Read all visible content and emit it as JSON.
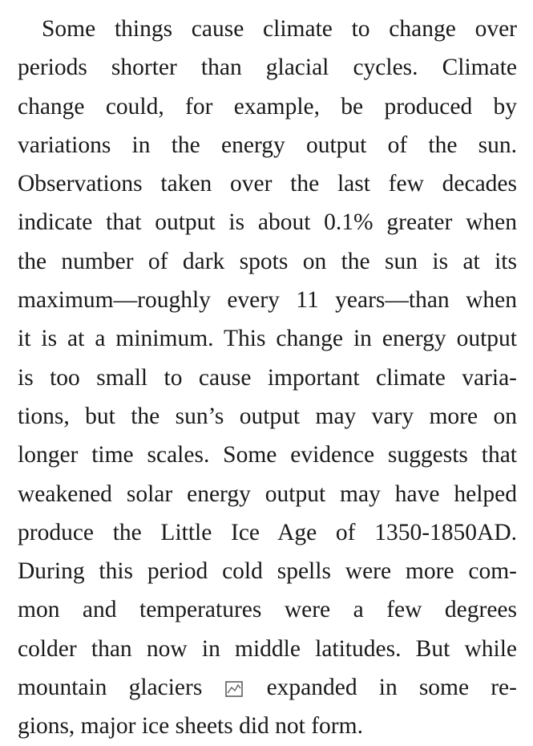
{
  "paragraph": {
    "lines": [
      [
        "Some things cause climate to change over"
      ],
      [
        "periods shorter than glacial cycles. Climate"
      ],
      [
        "change could, for example, be produced by"
      ],
      [
        "variations in the energy output of the sun."
      ],
      [
        "Observations taken over the last few decades"
      ],
      [
        "indicate that output is about 0.1% greater when"
      ],
      [
        "the number of dark spots on the sun is at its"
      ],
      [
        "maximum—roughly every 11 years—than when"
      ],
      [
        "it is at a minimum. This change in energy output"
      ],
      [
        "is too small to cause important climate varia-"
      ],
      [
        "tions, but the sun’s output may vary more on"
      ],
      [
        "longer time scales. Some evidence suggests that"
      ],
      [
        "weakened solar energy output may have helped"
      ],
      [
        "produce the Little Ice Age of 1350-1850AD."
      ],
      [
        "During this period cold spells were more com-"
      ],
      [
        "mon and temperatures were a few degrees"
      ],
      [
        "colder than now in middle latitudes. But while"
      ],
      [
        "mountain glaciers",
        "expanded in some re-"
      ],
      [
        "gions, major ice sheets did not form."
      ]
    ]
  }
}
